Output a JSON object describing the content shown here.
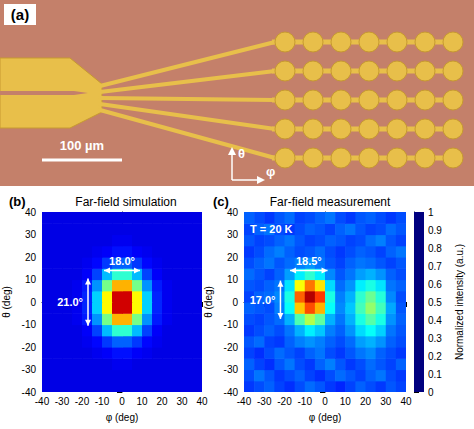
{
  "photo": {
    "label": "(a)",
    "scale_bar": "100 µm",
    "axis_labels": [
      "θ",
      "φ"
    ]
  },
  "chart_data": [
    {
      "type": "heatmap",
      "label": "(b)",
      "title": "Far-field simulation",
      "xlabel": "φ (deg)",
      "ylabel": "θ (deg)",
      "xlim": [
        -40,
        40
      ],
      "ylim": [
        -40,
        40
      ],
      "xticks": [
        -40,
        -30,
        -20,
        -10,
        0,
        10,
        20,
        30,
        40
      ],
      "yticks": [
        -40,
        -30,
        -20,
        -10,
        0,
        10,
        20,
        30,
        40
      ],
      "x": [
        -37.5,
        -32.5,
        -27.5,
        -22.5,
        -17.5,
        -12.5,
        -7.5,
        -2.5,
        2.5,
        7.5,
        12.5,
        17.5,
        22.5,
        27.5,
        32.5,
        37.5
      ],
      "y": [
        -37.5,
        -32.5,
        -27.5,
        -22.5,
        -17.5,
        -12.5,
        -7.5,
        -2.5,
        2.5,
        7.5,
        12.5,
        17.5,
        22.5,
        27.5,
        32.5,
        37.5
      ],
      "z": [
        [
          0.1,
          0.1,
          0.1,
          0.1,
          0.1,
          0.1,
          0.1,
          0.1,
          0.1,
          0.1,
          0.1,
          0.1,
          0.1,
          0.1,
          0.1,
          0.1
        ],
        [
          0.1,
          0.1,
          0.1,
          0.1,
          0.1,
          0.1,
          0.1,
          0.1,
          0.1,
          0.1,
          0.1,
          0.1,
          0.1,
          0.1,
          0.1,
          0.1
        ],
        [
          0.1,
          0.1,
          0.1,
          0.1,
          0.1,
          0.1,
          0.1,
          0.11,
          0.11,
          0.1,
          0.1,
          0.1,
          0.1,
          0.1,
          0.1,
          0.1
        ],
        [
          0.1,
          0.1,
          0.1,
          0.1,
          0.1,
          0.11,
          0.12,
          0.14,
          0.14,
          0.12,
          0.11,
          0.1,
          0.1,
          0.1,
          0.1,
          0.1
        ],
        [
          0.1,
          0.1,
          0.1,
          0.1,
          0.11,
          0.13,
          0.18,
          0.22,
          0.22,
          0.18,
          0.13,
          0.11,
          0.1,
          0.1,
          0.1,
          0.1
        ],
        [
          0.1,
          0.1,
          0.1,
          0.1,
          0.12,
          0.19,
          0.31,
          0.42,
          0.42,
          0.31,
          0.19,
          0.12,
          0.1,
          0.1,
          0.1,
          0.1
        ],
        [
          0.1,
          0.1,
          0.1,
          0.11,
          0.15,
          0.27,
          0.49,
          0.7,
          0.7,
          0.49,
          0.27,
          0.15,
          0.11,
          0.1,
          0.1,
          0.1
        ],
        [
          0.1,
          0.1,
          0.1,
          0.11,
          0.16,
          0.33,
          0.63,
          0.92,
          0.92,
          0.63,
          0.33,
          0.16,
          0.11,
          0.1,
          0.1,
          0.1
        ],
        [
          0.1,
          0.1,
          0.1,
          0.11,
          0.16,
          0.33,
          0.63,
          0.92,
          0.92,
          0.63,
          0.33,
          0.16,
          0.11,
          0.1,
          0.1,
          0.1
        ],
        [
          0.1,
          0.1,
          0.1,
          0.11,
          0.15,
          0.27,
          0.49,
          0.7,
          0.7,
          0.49,
          0.27,
          0.15,
          0.11,
          0.1,
          0.1,
          0.1
        ],
        [
          0.1,
          0.1,
          0.1,
          0.1,
          0.12,
          0.19,
          0.31,
          0.42,
          0.42,
          0.31,
          0.19,
          0.12,
          0.1,
          0.1,
          0.1,
          0.1
        ],
        [
          0.1,
          0.1,
          0.1,
          0.1,
          0.11,
          0.13,
          0.18,
          0.22,
          0.22,
          0.18,
          0.13,
          0.11,
          0.1,
          0.1,
          0.1,
          0.1
        ],
        [
          0.1,
          0.1,
          0.1,
          0.1,
          0.1,
          0.11,
          0.12,
          0.14,
          0.14,
          0.12,
          0.11,
          0.1,
          0.1,
          0.1,
          0.1,
          0.1
        ],
        [
          0.1,
          0.1,
          0.1,
          0.1,
          0.1,
          0.1,
          0.1,
          0.11,
          0.11,
          0.1,
          0.1,
          0.1,
          0.1,
          0.1,
          0.1,
          0.1
        ],
        [
          0.1,
          0.1,
          0.1,
          0.1,
          0.1,
          0.1,
          0.1,
          0.1,
          0.1,
          0.1,
          0.1,
          0.1,
          0.1,
          0.1,
          0.1,
          0.1
        ],
        [
          0.1,
          0.1,
          0.1,
          0.1,
          0.1,
          0.1,
          0.1,
          0.1,
          0.1,
          0.1,
          0.1,
          0.1,
          0.1,
          0.1,
          0.1,
          0.1
        ]
      ],
      "annotations": [
        {
          "type": "fwhm",
          "axis": "x",
          "value": 18.0,
          "label": "18.0°",
          "at": [
            0,
            14
          ]
        },
        {
          "type": "fwhm",
          "axis": "y",
          "value": 21.0,
          "label": "21.0°",
          "at": [
            -17,
            0
          ]
        }
      ]
    },
    {
      "type": "heatmap",
      "label": "(c)",
      "title": "Far-field measurement",
      "xlabel": "φ (deg)",
      "ylabel": "θ (deg)",
      "xlim": [
        -40,
        40
      ],
      "ylim": [
        -40,
        40
      ],
      "xticks": [
        -40,
        -30,
        -20,
        -10,
        0,
        10,
        20,
        30,
        40
      ],
      "yticks": [
        -40,
        -30,
        -20,
        -10,
        0,
        10,
        20,
        30,
        40
      ],
      "x": [
        -37.5,
        -32.5,
        -27.5,
        -22.5,
        -17.5,
        -12.5,
        -7.5,
        -2.5,
        2.5,
        7.5,
        12.5,
        17.5,
        22.5,
        27.5,
        32.5,
        37.5
      ],
      "y": [
        -37.5,
        -32.5,
        -27.5,
        -22.5,
        -17.5,
        -12.5,
        -7.5,
        -2.5,
        2.5,
        7.5,
        12.5,
        17.5,
        22.5,
        27.5,
        32.5,
        37.5
      ],
      "z": [
        [
          0.18,
          0.2,
          0.22,
          0.19,
          0.17,
          0.2,
          0.23,
          0.21,
          0.18,
          0.16,
          0.19,
          0.22,
          0.2,
          0.18,
          0.21,
          0.19
        ],
        [
          0.2,
          0.24,
          0.21,
          0.18,
          0.2,
          0.22,
          0.19,
          0.17,
          0.2,
          0.23,
          0.21,
          0.19,
          0.22,
          0.24,
          0.2,
          0.18
        ],
        [
          0.22,
          0.19,
          0.17,
          0.21,
          0.24,
          0.2,
          0.18,
          0.22,
          0.25,
          0.21,
          0.18,
          0.2,
          0.23,
          0.21,
          0.19,
          0.22
        ],
        [
          0.19,
          0.17,
          0.2,
          0.23,
          0.21,
          0.19,
          0.22,
          0.24,
          0.2,
          0.18,
          0.21,
          0.24,
          0.26,
          0.22,
          0.2,
          0.18
        ],
        [
          0.21,
          0.23,
          0.19,
          0.18,
          0.22,
          0.25,
          0.27,
          0.25,
          0.22,
          0.2,
          0.23,
          0.28,
          0.3,
          0.27,
          0.22,
          0.2
        ],
        [
          0.18,
          0.2,
          0.22,
          0.2,
          0.24,
          0.3,
          0.36,
          0.32,
          0.25,
          0.22,
          0.27,
          0.34,
          0.38,
          0.33,
          0.24,
          0.21
        ],
        [
          0.2,
          0.19,
          0.21,
          0.23,
          0.3,
          0.45,
          0.55,
          0.47,
          0.3,
          0.24,
          0.3,
          0.4,
          0.46,
          0.4,
          0.27,
          0.22
        ],
        [
          0.22,
          0.21,
          0.2,
          0.25,
          0.38,
          0.68,
          0.8,
          0.7,
          0.38,
          0.26,
          0.32,
          0.44,
          0.52,
          0.44,
          0.29,
          0.21
        ],
        [
          0.19,
          0.22,
          0.23,
          0.26,
          0.4,
          0.78,
          0.95,
          0.82,
          0.4,
          0.25,
          0.3,
          0.42,
          0.48,
          0.41,
          0.26,
          0.2
        ],
        [
          0.21,
          0.2,
          0.22,
          0.24,
          0.35,
          0.62,
          0.76,
          0.65,
          0.34,
          0.23,
          0.27,
          0.36,
          0.4,
          0.35,
          0.24,
          0.22
        ],
        [
          0.23,
          0.21,
          0.19,
          0.22,
          0.28,
          0.36,
          0.42,
          0.36,
          0.26,
          0.21,
          0.24,
          0.28,
          0.3,
          0.27,
          0.22,
          0.2
        ],
        [
          0.2,
          0.22,
          0.24,
          0.21,
          0.23,
          0.25,
          0.27,
          0.24,
          0.21,
          0.19,
          0.22,
          0.24,
          0.23,
          0.21,
          0.19,
          0.21
        ],
        [
          0.18,
          0.2,
          0.23,
          0.25,
          0.22,
          0.2,
          0.21,
          0.23,
          0.2,
          0.18,
          0.2,
          0.22,
          0.21,
          0.19,
          0.22,
          0.24
        ],
        [
          0.21,
          0.19,
          0.2,
          0.22,
          0.24,
          0.21,
          0.19,
          0.2,
          0.22,
          0.21,
          0.19,
          0.2,
          0.23,
          0.25,
          0.21,
          0.19
        ],
        [
          0.19,
          0.22,
          0.24,
          0.2,
          0.18,
          0.2,
          0.22,
          0.21,
          0.19,
          0.22,
          0.24,
          0.21,
          0.19,
          0.2,
          0.23,
          0.21
        ],
        [
          0.22,
          0.2,
          0.18,
          0.21,
          0.23,
          0.19,
          0.2,
          0.22,
          0.24,
          0.2,
          0.18,
          0.21,
          0.22,
          0.2,
          0.18,
          0.2
        ]
      ],
      "annotations": [
        {
          "type": "fwhm",
          "axis": "x",
          "value": 18.5,
          "label": "18.5°",
          "at": [
            -8,
            14
          ]
        },
        {
          "type": "fwhm",
          "axis": "y",
          "value": 17.0,
          "label": "17.0°",
          "at": [
            -22,
            1
          ]
        },
        {
          "type": "text",
          "label": "T = 20 K",
          "at": [
            -37,
            35
          ]
        }
      ],
      "colorbar": {
        "label": "Normalized intensity (a.u.)",
        "range": [
          0,
          1
        ],
        "ticks": [
          0,
          0.1,
          0.2,
          0.3,
          0.4,
          0.5,
          0.6,
          0.7,
          0.8,
          0.9,
          1
        ]
      }
    }
  ]
}
